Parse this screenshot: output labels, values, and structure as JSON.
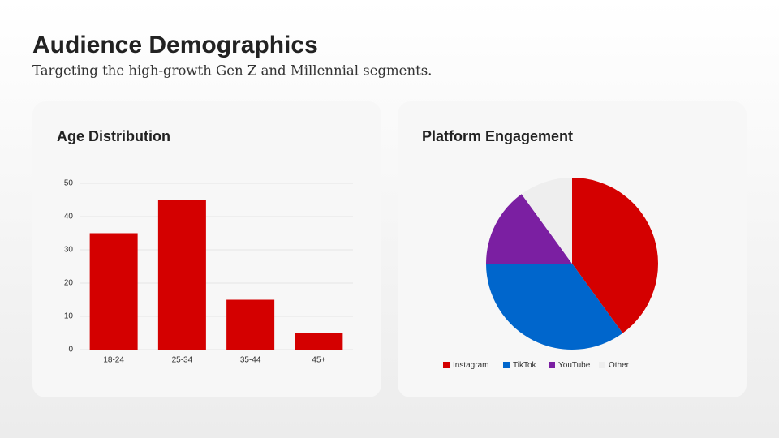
{
  "header": {
    "title": "Audience Demographics",
    "subtitle": "Targeting the high-growth Gen Z and Millennial segments."
  },
  "chart_data": [
    {
      "type": "bar",
      "title": "Age Distribution",
      "categories": [
        "18-24",
        "25-34",
        "35-44",
        "45+"
      ],
      "values": [
        35,
        45,
        15,
        5
      ],
      "color": "#d40000",
      "ylim": [
        0,
        50
      ],
      "yticks": [
        0,
        10,
        20,
        30,
        40,
        50
      ],
      "grid": true
    },
    {
      "type": "pie",
      "title": "Platform Engagement",
      "categories": [
        "Instagram",
        "TikTok",
        "YouTube",
        "Other"
      ],
      "values": [
        40,
        35,
        15,
        10
      ],
      "colors": [
        "#d40000",
        "#0066cc",
        "#7b1fa2",
        "#eeeeee"
      ],
      "legend": "bottom"
    }
  ]
}
